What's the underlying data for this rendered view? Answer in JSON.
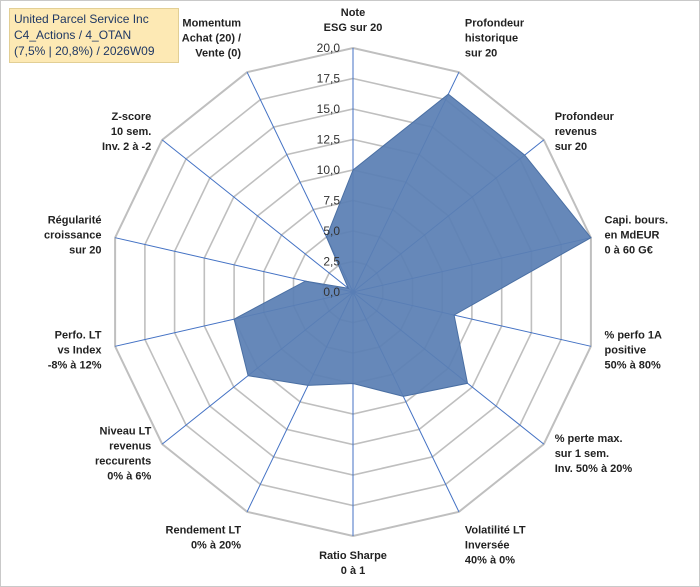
{
  "info_box": {
    "line1": "United Parcel Service  Inc",
    "line2": "C4_Actions / 4_OTAN",
    "line3": "(7,5% | 20,8%) / 2026W09"
  },
  "colors": {
    "fill": "#5a7fb4",
    "stroke": "#4a6fa3",
    "grid": "#bfbfbf",
    "spoke": "#4472c4"
  },
  "chart_data": {
    "type": "radar",
    "rmin": 0,
    "rmax": 20,
    "tick_labels": [
      "0,0",
      "2,5",
      "5,0",
      "7,5",
      "10,0",
      "12,5",
      "15,0",
      "17,5",
      "20,0"
    ],
    "axes": [
      {
        "label": [
          "Note",
          "ESG sur 20"
        ],
        "value": 10
      },
      {
        "label": [
          "Profondeur",
          "historique",
          "sur 20"
        ],
        "value": 18
      },
      {
        "label": [
          "Profondeur",
          "revenus",
          "sur 20"
        ],
        "value": 18
      },
      {
        "label": [
          "Capi. bours.",
          "en MdEUR",
          "0 à 60 G€"
        ],
        "value": 20
      },
      {
        "label": [
          "% perfo 1A",
          "positive",
          "50% à 80%"
        ],
        "value": 8.5
      },
      {
        "label": [
          "% perte max.",
          "sur 1 sem.",
          "Inv. 50% à 20%"
        ],
        "value": 12
      },
      {
        "label": [
          "Volatilité LT",
          "Inversée",
          "40% à 0%"
        ],
        "value": 9.5
      },
      {
        "label": [
          "Ratio Sharpe",
          "0 à 1"
        ],
        "value": 7.5
      },
      {
        "label": [
          "Rendement LT",
          "0% à 20%"
        ],
        "value": 8.5
      },
      {
        "label": [
          "Niveau LT",
          "revenus",
          "reccurents",
          "0% à 6%"
        ],
        "value": 11
      },
      {
        "label": [
          "Perfo. LT",
          "vs Index",
          "-8% à 12%"
        ],
        "value": 10
      },
      {
        "label": [
          "Régularité",
          "croissance",
          "sur 20"
        ],
        "value": 4
      },
      {
        "label": [
          "Z-score",
          "10 sem.",
          "Inv. 2 à -2"
        ],
        "value": 0.5
      },
      {
        "label": [
          "Momentum",
          "Achat (20) /",
          "Vente (0)"
        ],
        "value": 5
      }
    ]
  }
}
